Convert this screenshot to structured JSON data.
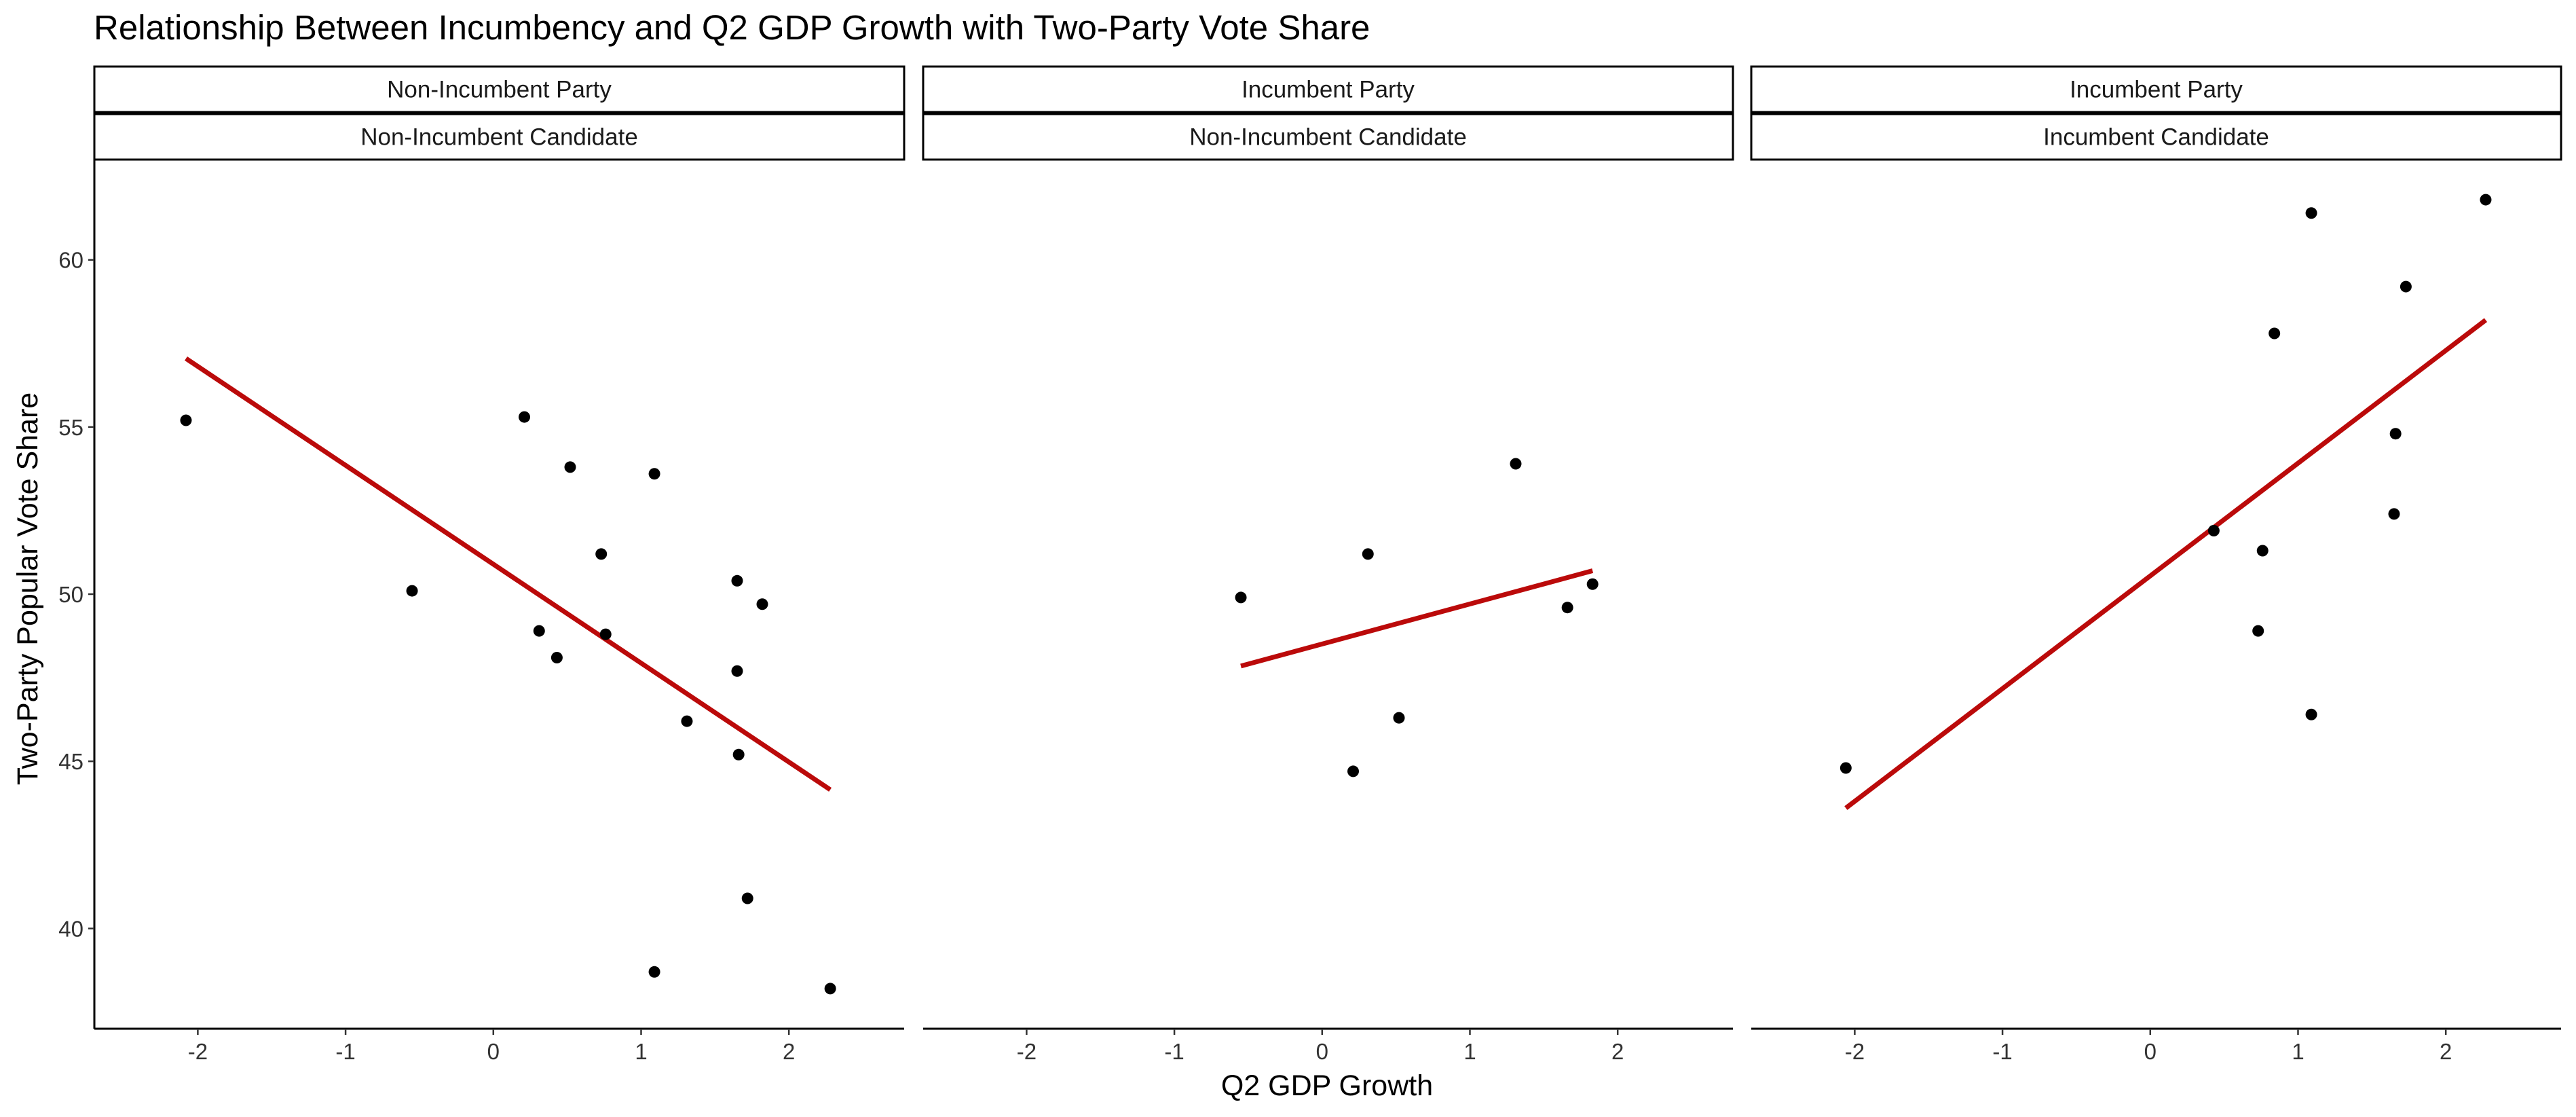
{
  "chart_data": {
    "type": "scatter",
    "title": "Relationship Between Incumbency and Q2 GDP Growth with Two-Party Vote Share",
    "xlabel": "Q2 GDP Growth",
    "ylabel": "Two-Party Popular Vote Share",
    "xlim": [
      -2.7,
      2.78
    ],
    "ylim": [
      37.0,
      63.0
    ],
    "x_ticks": [
      -2,
      -1,
      0,
      1,
      2
    ],
    "y_ticks": [
      40,
      45,
      50,
      55,
      60
    ],
    "grid": false,
    "point_color": "#000000",
    "fit_line_color": "#BB0A0A",
    "panels": [
      {
        "strip_top": "Non-Incumbent Party",
        "strip_bottom": "Non-Incumbent Candidate",
        "points": [
          {
            "x": -2.08,
            "y": 55.2
          },
          {
            "x": -0.55,
            "y": 50.1
          },
          {
            "x": 0.21,
            "y": 55.3
          },
          {
            "x": 0.31,
            "y": 48.9
          },
          {
            "x": 0.43,
            "y": 48.1
          },
          {
            "x": 0.52,
            "y": 53.8
          },
          {
            "x": 0.73,
            "y": 51.2
          },
          {
            "x": 0.76,
            "y": 48.8
          },
          {
            "x": 1.09,
            "y": 53.6
          },
          {
            "x": 1.09,
            "y": 38.7
          },
          {
            "x": 1.31,
            "y": 46.2
          },
          {
            "x": 1.65,
            "y": 50.4
          },
          {
            "x": 1.65,
            "y": 47.7
          },
          {
            "x": 1.66,
            "y": 45.2
          },
          {
            "x": 1.72,
            "y": 40.9
          },
          {
            "x": 1.82,
            "y": 49.7
          },
          {
            "x": 2.28,
            "y": 38.2
          }
        ],
        "fit": {
          "x": [
            -2.08,
            2.28
          ],
          "y": [
            57.05,
            44.15
          ]
        }
      },
      {
        "strip_top": "Incumbent Party",
        "strip_bottom": "Non-Incumbent Candidate",
        "points": [
          {
            "x": -0.55,
            "y": 49.9
          },
          {
            "x": 0.21,
            "y": 44.7
          },
          {
            "x": 0.31,
            "y": 51.2
          },
          {
            "x": 0.52,
            "y": 46.3
          },
          {
            "x": 1.31,
            "y": 53.9
          },
          {
            "x": 1.66,
            "y": 49.6
          },
          {
            "x": 1.83,
            "y": 50.3
          }
        ],
        "fit": {
          "x": [
            -0.55,
            1.83
          ],
          "y": [
            47.85,
            50.7
          ]
        }
      },
      {
        "strip_top": "Incumbent Party",
        "strip_bottom": "Incumbent Candidate",
        "points": [
          {
            "x": -2.06,
            "y": 44.8
          },
          {
            "x": 0.43,
            "y": 51.9
          },
          {
            "x": 0.73,
            "y": 48.9
          },
          {
            "x": 0.76,
            "y": 51.3
          },
          {
            "x": 0.84,
            "y": 57.8
          },
          {
            "x": 1.09,
            "y": 61.4
          },
          {
            "x": 1.09,
            "y": 46.4
          },
          {
            "x": 1.65,
            "y": 52.4
          },
          {
            "x": 1.66,
            "y": 54.8
          },
          {
            "x": 1.73,
            "y": 59.2
          },
          {
            "x": 2.27,
            "y": 61.8
          }
        ],
        "fit": {
          "x": [
            -2.06,
            2.27
          ],
          "y": [
            43.6,
            58.2
          ]
        }
      }
    ]
  }
}
